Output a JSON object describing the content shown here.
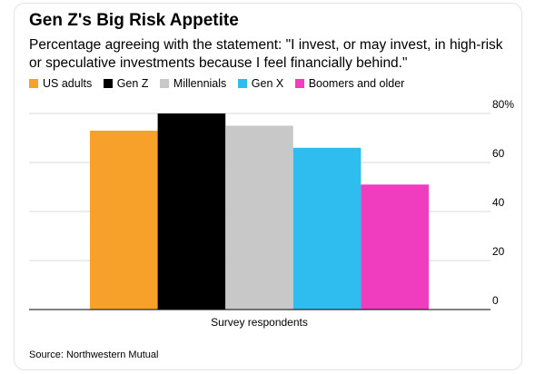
{
  "chart_data": {
    "type": "bar",
    "title": "Gen Z's Big Risk Appetite",
    "subtitle": "Percentage agreeing with the statement: \"I invest, or may invest, in high-risk or speculative investments because I feel financially behind.\"",
    "categories": [
      "Survey respondents"
    ],
    "series": [
      {
        "name": "US adults",
        "color": "#f7a12b",
        "values": [
          73
        ]
      },
      {
        "name": "Gen Z",
        "color": "#000000",
        "values": [
          80
        ]
      },
      {
        "name": "Millennials",
        "color": "#c8c8c8",
        "values": [
          75
        ]
      },
      {
        "name": "Gen X",
        "color": "#2fbdf0",
        "values": [
          66
        ]
      },
      {
        "name": "Boomers and older",
        "color": "#f03cbf",
        "values": [
          51
        ]
      }
    ],
    "xlabel": "Survey respondents",
    "ylim": [
      0,
      80
    ],
    "yticks": [
      {
        "value": 0,
        "label": "0"
      },
      {
        "value": 20,
        "label": "20"
      },
      {
        "value": 40,
        "label": "40"
      },
      {
        "value": 60,
        "label": "60"
      },
      {
        "value": 80,
        "label": "80%"
      }
    ],
    "grid": true,
    "legend_position": "top-left",
    "y_axis_side": "right"
  },
  "source": "Source: Northwestern Mutual"
}
